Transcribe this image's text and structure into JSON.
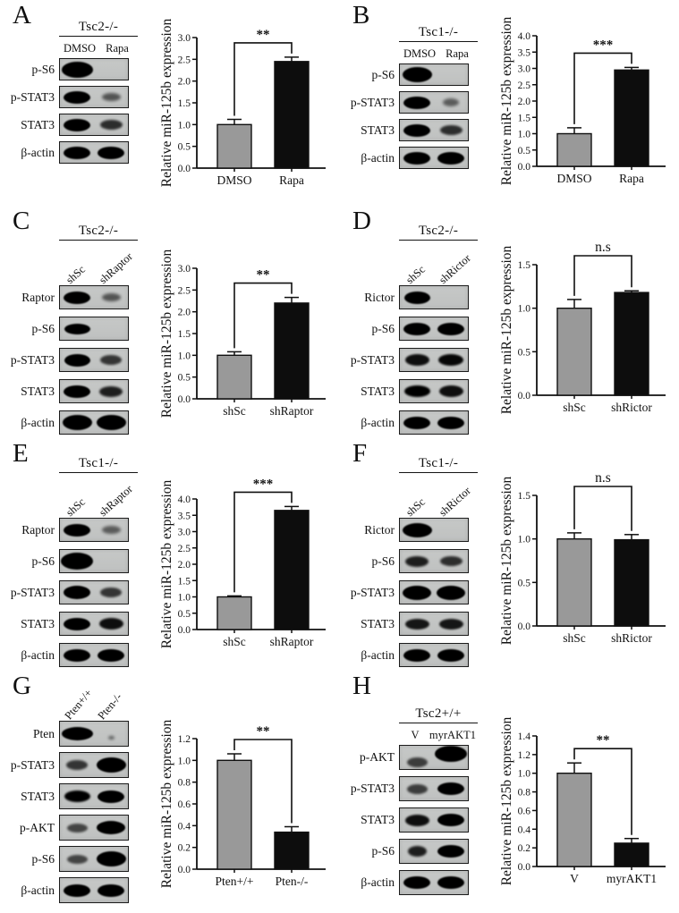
{
  "figure": {
    "ylabel": "Relative miR-125b expression",
    "bar_colors": {
      "control": "#999999",
      "treatment": "#0d0d0d"
    },
    "panels": [
      {
        "letter": "A",
        "blot": {
          "title": "Tsc2-/-",
          "header": "horizontal",
          "lane_labels": [
            "DMSO",
            "Rapa"
          ],
          "rows": [
            {
              "label": "p-S6",
              "lanes": [
                {
                  "i": 1,
                  "sx": 1.15,
                  "sy": 1.3
                },
                0
              ]
            },
            {
              "label": "p-STAT3",
              "lanes": [
                1,
                0.35
              ]
            },
            {
              "label": "STAT3",
              "lanes": [
                1,
                0.6
              ]
            },
            {
              "label": "β-actin",
              "lanes": [
                1,
                1
              ]
            }
          ]
        }
      },
      {
        "letter": "B",
        "blot": {
          "title": "Tsc1-/-",
          "header": "horizontal",
          "lane_labels": [
            "DMSO",
            "Rapa"
          ],
          "rows": [
            {
              "label": "p-S6",
              "lanes": [
                {
                  "i": 1,
                  "sx": 1.1,
                  "sy": 1.2
                },
                0
              ]
            },
            {
              "label": "p-STAT3",
              "lanes": [
                1,
                {
                  "i": 0.3,
                  "sx": 0.9
                }
              ]
            },
            {
              "label": "STAT3",
              "lanes": [
                1,
                0.6
              ]
            },
            {
              "label": "β-actin",
              "lanes": [
                1,
                1
              ]
            }
          ]
        }
      },
      {
        "letter": "C",
        "blot": {
          "title": "Tsc2-/-",
          "header": "rotated",
          "lane_labels": [
            "shSc",
            "shRaptor"
          ],
          "rows": [
            {
              "label": "Raptor",
              "lanes": [
                1,
                0.35
              ]
            },
            {
              "label": "p-S6",
              "lanes": [
                {
                  "i": 0.95,
                  "sy": 0.9
                },
                0
              ]
            },
            {
              "label": "p-STAT3",
              "lanes": [
                0.95,
                0.55
              ]
            },
            {
              "label": "STAT3",
              "lanes": [
                1,
                0.7
              ]
            },
            {
              "label": "β-actin",
              "lanes": [
                {
                  "i": 1,
                  "sx": 1.1,
                  "sy": 1.2
                },
                {
                  "i": 1,
                  "sx": 1.1,
                  "sy": 1.2
                }
              ]
            }
          ]
        }
      },
      {
        "letter": "D",
        "blot": {
          "title": "Tsc2-/-",
          "header": "rotated",
          "lane_labels": [
            "shSc",
            "shRictor"
          ],
          "rows": [
            {
              "label": "Rictor",
              "lanes": [
                0.95,
                0
              ]
            },
            {
              "label": "p-S6",
              "lanes": [
                1,
                1
              ]
            },
            {
              "label": "p-STAT3",
              "lanes": [
                0.8,
                0.85
              ]
            },
            {
              "label": "STAT3",
              "lanes": [
                0.9,
                0.8
              ]
            },
            {
              "label": "β-actin",
              "lanes": [
                1,
                1
              ]
            }
          ]
        }
      },
      {
        "letter": "E",
        "blot": {
          "title": "Tsc1-/-",
          "header": "rotated",
          "lane_labels": [
            "shSc",
            "shRaptor"
          ],
          "rows": [
            {
              "label": "Raptor",
              "lanes": [
                1,
                0.3
              ]
            },
            {
              "label": "p-S6",
              "lanes": [
                {
                  "i": 1,
                  "sx": 1.2,
                  "sy": 1.35
                },
                0
              ]
            },
            {
              "label": "p-STAT3",
              "lanes": [
                {
                  "i": 1,
                  "sy": 1.1
                },
                0.55
              ]
            },
            {
              "label": "STAT3",
              "lanes": [
                1,
                0.8
              ]
            },
            {
              "label": "β-actin",
              "lanes": [
                1,
                1
              ]
            }
          ]
        }
      },
      {
        "letter": "F",
        "blot": {
          "title": "Tsc1-/-",
          "header": "rotated",
          "lane_labels": [
            "shSc",
            "shRictor"
          ],
          "rows": [
            {
              "label": "Rictor",
              "lanes": [
                {
                  "i": 1,
                  "sx": 1.1,
                  "sy": 1.15
                },
                0
              ]
            },
            {
              "label": "p-S6",
              "lanes": [
                0.7,
                0.6
              ]
            },
            {
              "label": "p-STAT3",
              "lanes": [
                {
                  "i": 1,
                  "sx": 1.05,
                  "sy": 1.15
                },
                {
                  "i": 1,
                  "sx": 1.05,
                  "sy": 1.15
                }
              ]
            },
            {
              "label": "STAT3",
              "lanes": [
                0.75,
                0.75
              ]
            },
            {
              "label": "β-actin",
              "lanes": [
                1,
                1
              ]
            }
          ]
        }
      },
      {
        "letter": "G",
        "blot": {
          "title": null,
          "header": "rotated",
          "lane_labels": [
            "Pten+/+",
            "Pten-/-"
          ],
          "rows": [
            {
              "label": "Pten",
              "lanes": [
                {
                  "i": 1,
                  "sx": 1.15,
                  "sy": 1.1
                },
                {
                  "i": 0.3,
                  "sx": 0.35,
                  "sy": 0.45,
                  "dy": 4
                }
              ]
            },
            {
              "label": "p-STAT3",
              "lanes": [
                0.55,
                {
                  "i": 1,
                  "sx": 1.1,
                  "sy": 1.2
                }
              ]
            },
            {
              "label": "STAT3",
              "lanes": [
                0.9,
                1
              ]
            },
            {
              "label": "p-AKT",
              "lanes": [
                0.45,
                {
                  "i": 1,
                  "sx": 1.05,
                  "sy": 1.1
                }
              ]
            },
            {
              "label": "p-S6",
              "lanes": [
                0.45,
                {
                  "i": 1,
                  "sx": 1.1,
                  "sy": 1.2
                }
              ]
            },
            {
              "label": "β-actin",
              "lanes": [
                1,
                1
              ]
            }
          ]
        }
      },
      {
        "letter": "H",
        "blot": {
          "title": "Tsc2+/+",
          "header": "horizontal",
          "lane_labels": [
            "V",
            "myrAKT1"
          ],
          "rows": [
            {
              "label": "p-AKT",
              "lanes": [
                {
                  "i": 0.5,
                  "dy": 5
                },
                {
                  "i": 1,
                  "sx": 1.2,
                  "sy": 1.3,
                  "dy": -4
                }
              ]
            },
            {
              "label": "p-STAT3",
              "lanes": [
                0.5,
                1
              ]
            },
            {
              "label": "STAT3",
              "lanes": [
                0.8,
                1
              ]
            },
            {
              "label": "p-S6",
              "lanes": [
                {
                  "i": 0.7,
                  "sx": 0.8
                },
                1
              ]
            },
            {
              "label": "β-actin",
              "lanes": [
                1,
                1
              ]
            }
          ]
        }
      }
    ]
  },
  "chart_data": [
    {
      "type": "bar",
      "title": "",
      "xlabel": "",
      "ylabel": "Relative miR-125b expression",
      "categories": [
        "DMSO",
        "Rapa"
      ],
      "values": [
        1.0,
        2.45
      ],
      "errors": [
        0.12,
        0.1
      ],
      "significance": "**",
      "ylim": [
        0,
        3.0
      ],
      "ystep": 0.5,
      "bar_colors": [
        "#999999",
        "#0d0d0d"
      ],
      "grid": false,
      "legend": "none"
    },
    {
      "type": "bar",
      "title": "",
      "xlabel": "",
      "ylabel": "Relative miR-125b expression",
      "categories": [
        "DMSO",
        "Rapa"
      ],
      "values": [
        1.0,
        2.95
      ],
      "errors": [
        0.18,
        0.08
      ],
      "significance": "***",
      "ylim": [
        0,
        4.0
      ],
      "ystep": 0.5,
      "bar_colors": [
        "#999999",
        "#0d0d0d"
      ],
      "grid": false,
      "legend": "none"
    },
    {
      "type": "bar",
      "title": "",
      "xlabel": "",
      "ylabel": "Relative miR-125b expression",
      "categories": [
        "shSc",
        "shRaptor"
      ],
      "values": [
        1.0,
        2.2
      ],
      "errors": [
        0.08,
        0.13
      ],
      "significance": "**",
      "ylim": [
        0,
        3.0
      ],
      "ystep": 0.5,
      "bar_colors": [
        "#999999",
        "#0d0d0d"
      ],
      "grid": false,
      "legend": "none"
    },
    {
      "type": "bar",
      "title": "",
      "xlabel": "",
      "ylabel": "Relative miR-125b expression",
      "categories": [
        "shSc",
        "shRictor"
      ],
      "values": [
        1.0,
        1.18
      ],
      "errors": [
        0.1,
        0.02
      ],
      "significance": "n.s",
      "ylim": [
        0,
        1.5
      ],
      "ystep": 0.5,
      "bar_colors": [
        "#999999",
        "#0d0d0d"
      ],
      "grid": false,
      "legend": "none"
    },
    {
      "type": "bar",
      "title": "",
      "xlabel": "",
      "ylabel": "Relative miR-125b expression",
      "categories": [
        "shSc",
        "shRaptor"
      ],
      "values": [
        1.0,
        3.65
      ],
      "errors": [
        0.03,
        0.12
      ],
      "significance": "***",
      "ylim": [
        0,
        4.0
      ],
      "ystep": 0.5,
      "bar_colors": [
        "#999999",
        "#0d0d0d"
      ],
      "grid": false,
      "legend": "none"
    },
    {
      "type": "bar",
      "title": "",
      "xlabel": "",
      "ylabel": "Relative miR-125b expression",
      "categories": [
        "shSc",
        "shRictor"
      ],
      "values": [
        1.0,
        0.99
      ],
      "errors": [
        0.07,
        0.06
      ],
      "significance": "n.s",
      "ylim": [
        0,
        1.5
      ],
      "ystep": 0.5,
      "bar_colors": [
        "#999999",
        "#0d0d0d"
      ],
      "grid": false,
      "legend": "none"
    },
    {
      "type": "bar",
      "title": "",
      "xlabel": "",
      "ylabel": "Relative miR-125b expression",
      "categories": [
        "Pten+/+",
        "Pten-/-"
      ],
      "values": [
        1.0,
        0.34
      ],
      "errors": [
        0.06,
        0.05
      ],
      "significance": "**",
      "ylim": [
        0,
        1.2
      ],
      "ystep": 0.2,
      "bar_colors": [
        "#999999",
        "#0d0d0d"
      ],
      "grid": false,
      "legend": "none"
    },
    {
      "type": "bar",
      "title": "",
      "xlabel": "",
      "ylabel": "Relative miR-125b expression",
      "categories": [
        "V",
        "myrAKT1"
      ],
      "values": [
        1.0,
        0.25
      ],
      "errors": [
        0.11,
        0.05
      ],
      "significance": "**",
      "ylim": [
        0,
        1.4
      ],
      "ystep": 0.2,
      "bar_colors": [
        "#999999",
        "#0d0d0d"
      ],
      "grid": false,
      "legend": "none"
    }
  ]
}
